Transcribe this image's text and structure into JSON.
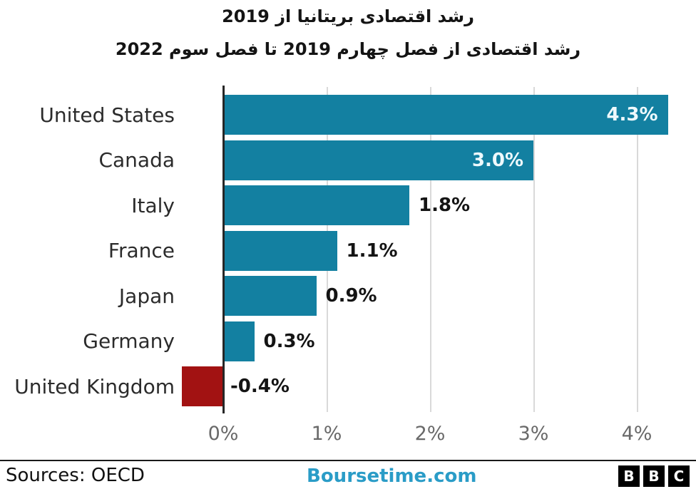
{
  "title": "رشد اقتصادی بریتانیا از 2019",
  "subtitle": "رشد اقتصادی از فصل چهارم 2019 تا فصل سوم 2022",
  "chart_data": {
    "type": "bar",
    "orientation": "horizontal",
    "title": "رشد اقتصادی بریتانیا از 2019",
    "subtitle": "رشد اقتصادی از فصل چهارم 2019 تا فصل سوم 2022",
    "categories": [
      "United States",
      "Canada",
      "Italy",
      "France",
      "Japan",
      "Germany",
      "United Kingdom"
    ],
    "values": [
      4.3,
      3.0,
      1.8,
      1.1,
      0.9,
      0.3,
      -0.4
    ],
    "value_labels": [
      "4.3%",
      "3.0%",
      "1.8%",
      "1.1%",
      "0.9%",
      "0.3%",
      "-0.4%"
    ],
    "value_label_placement": [
      "inside",
      "inside",
      "outside",
      "outside",
      "outside",
      "outside",
      "outside"
    ],
    "x_ticks": [
      {
        "value": 0,
        "label": "0%"
      },
      {
        "value": 1,
        "label": "1%"
      },
      {
        "value": 2,
        "label": "2%"
      },
      {
        "value": 3,
        "label": "3%"
      },
      {
        "value": 4,
        "label": "4%"
      }
    ],
    "xlim": [
      -0.55,
      4.45
    ],
    "grid": true,
    "legend": "none",
    "colors": {
      "positive_bar": "#1380A1",
      "negative_bar": "#A21212",
      "grid_line": "#d9d9d9",
      "axis_line": "#262626",
      "tick_label": "#696969",
      "inside_value_label": "#eef9fc",
      "outside_value_label": "#141414"
    }
  },
  "footer": {
    "source": "Sources: OECD",
    "watermark": "Boursetime.com",
    "watermark_color": "#2a9cc7",
    "logo_letters": [
      "B",
      "B",
      "C"
    ]
  }
}
